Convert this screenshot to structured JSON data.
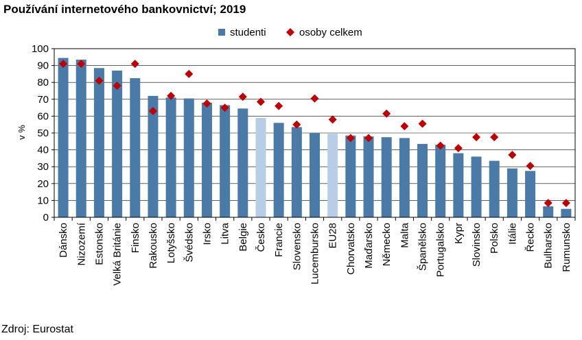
{
  "title": "Používání internetového bankovnictví; 2019",
  "source": "Zdroj: Eurostat",
  "colors": {
    "bar": "#4a7aa8",
    "bar_highlight": "#b8cde6",
    "marker": "#c00000",
    "axis": "#000000",
    "grid": "#000000"
  },
  "chart_data": {
    "type": "bar",
    "ylabel": "v %",
    "ylim": [
      0,
      100
    ],
    "yticks": [
      0,
      10,
      20,
      30,
      40,
      50,
      60,
      70,
      80,
      90,
      100
    ],
    "grid": true,
    "legend_position": "top",
    "categories": [
      "Dánsko",
      "Nizozemí",
      "Estonsko",
      "Velká Británie",
      "Finsko",
      "Rakousko",
      "Lotyšsko",
      "Švédsko",
      "Irsko",
      "Litva",
      "Belgie",
      "Česko",
      "Francie",
      "Slovensko",
      "Lucembursko",
      "EU28",
      "Chorvatsko",
      "Maďarsko",
      "Německo",
      "Malta",
      "Španělsko",
      "Portugalsko",
      "Kypr",
      "Slovinsko",
      "Polsko",
      "Itálie",
      "Řecko",
      "Bulharsko",
      "Rumunsko"
    ],
    "highlighted": [
      "Česko",
      "EU28"
    ],
    "series": [
      {
        "name": "studenti",
        "kind": "bar",
        "values": [
          94.5,
          93.5,
          88.5,
          87,
          82.5,
          72,
          71,
          70.5,
          68,
          66.5,
          64.5,
          59,
          56,
          53.5,
          50,
          49.5,
          48.5,
          48,
          47.5,
          47,
          43.5,
          43,
          38,
          36,
          33.5,
          29,
          27.5,
          6.5,
          5
        ]
      },
      {
        "name": "osoby celkem",
        "kind": "marker",
        "values": [
          91,
          91,
          81,
          78,
          91,
          63,
          72,
          85,
          67.5,
          65,
          71.5,
          68.5,
          66,
          55,
          70.5,
          58,
          47,
          47,
          61.5,
          54,
          55.5,
          42.5,
          41,
          47.5,
          47.5,
          37,
          30.5,
          8.5,
          8.5
        ]
      }
    ]
  }
}
